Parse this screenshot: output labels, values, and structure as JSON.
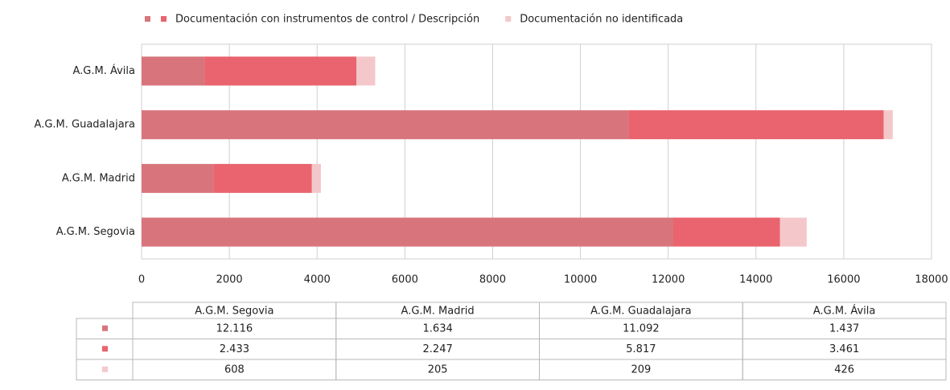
{
  "chart_data": {
    "type": "stacked-bar-horizontal",
    "categories": [
      "A.G.M. Segovia",
      "A.G.M. Madrid",
      "A.G.M. Guadalajara",
      "A.G.M. Ávila"
    ],
    "series": [
      {
        "color": "#d8757c",
        "values": [
          12116,
          1634,
          11092,
          1437
        ],
        "value_labels": [
          "12.116",
          "1.634",
          "11.092",
          "1.437"
        ]
      },
      {
        "name": "Documentación con instrumentos de control / Descripción",
        "color": "#e9646e",
        "values": [
          2433,
          2247,
          5817,
          3461
        ],
        "value_labels": [
          "2.433",
          "2.247",
          "5.817",
          "3.461"
        ]
      },
      {
        "name": "Documentación no identificada",
        "color": "#f4c8ca",
        "values": [
          608,
          205,
          209,
          426
        ],
        "value_labels": [
          "608",
          "205",
          "209",
          "426"
        ]
      }
    ],
    "xlim": [
      0,
      18000
    ],
    "xticks": [
      0,
      2000,
      4000,
      6000,
      8000,
      10000,
      12000,
      14000,
      16000,
      18000
    ],
    "grid": true,
    "legend": "top"
  }
}
